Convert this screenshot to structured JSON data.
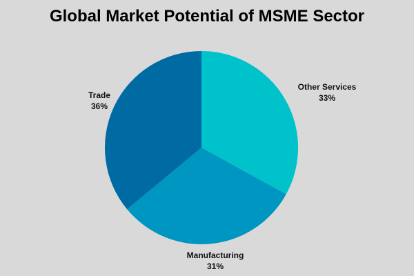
{
  "chart_data": {
    "type": "pie",
    "title": "Global Market Potential of MSME Sector",
    "slices": [
      {
        "label": "Other Services",
        "value": 33,
        "value_label": "33%",
        "color": "#00c2cb"
      },
      {
        "label": "Manufacturing",
        "value": 31,
        "value_label": "31%",
        "color": "#0096c2"
      },
      {
        "label": "Trade",
        "value": 36,
        "value_label": "36%",
        "color": "#006aa3"
      }
    ],
    "start": "12 o'clock",
    "direction": "clockwise",
    "legend": "none",
    "labels": "outside slices"
  }
}
